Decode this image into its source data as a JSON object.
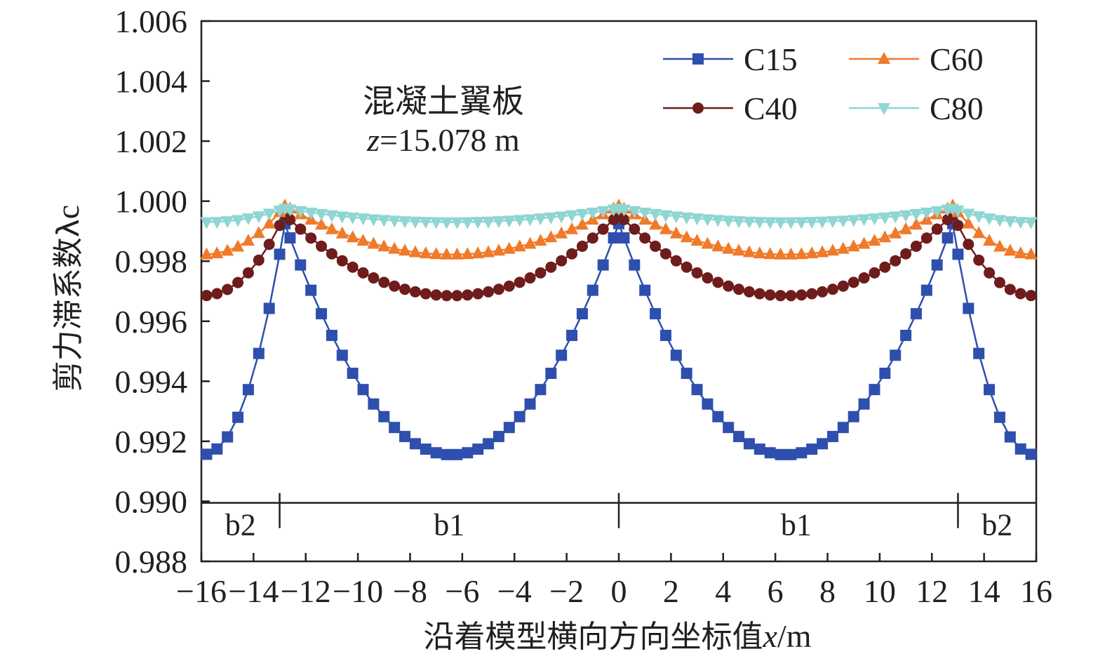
{
  "chart_data": {
    "type": "line",
    "xlabel_prefix": "沿着模型横向方向坐标值",
    "xlabel_var": "x",
    "xlabel_unit": "/m",
    "ylabel_main": "剪力滞系数λ",
    "ylabel_sub": "c",
    "xlim": [
      -16,
      16
    ],
    "ylim": [
      0.988,
      1.006
    ],
    "x_ticks": [
      -16,
      -14,
      -12,
      -10,
      -8,
      -6,
      -4,
      -2,
      0,
      2,
      4,
      6,
      8,
      10,
      12,
      14,
      16
    ],
    "x_tick_labels": [
      "−16",
      "−14",
      "−12",
      "−10",
      "−8",
      "−6",
      "−4",
      "−2",
      "0",
      "2",
      "4",
      "6",
      "8",
      "10",
      "12",
      "14",
      "16"
    ],
    "y_ticks": [
      0.988,
      0.99,
      0.992,
      0.994,
      0.996,
      0.998,
      1.0,
      1.002,
      1.004,
      1.006
    ],
    "y_tick_labels": [
      "0.988",
      "0.990",
      "0.992",
      "0.994",
      "0.996",
      "0.998",
      "1.000",
      "1.002",
      "1.004",
      "1.006"
    ],
    "annotation": {
      "line1": "混凝土翼板",
      "line2_var": "z",
      "line2_rest": "=15.078 m"
    },
    "regions": [
      {
        "label": "b2",
        "x_center": -14.5
      },
      {
        "label": "b1",
        "x_center": -6.5
      },
      {
        "label": "b1",
        "x_center": 6.8
      },
      {
        "label": "b2",
        "x_center": 14.5
      }
    ],
    "region_dividers": [
      -13,
      0,
      13
    ],
    "region_line_y": 0.98995,
    "legend_position": "top-right",
    "grid": false,
    "peaks": [
      -12.8,
      0,
      12.8
    ],
    "x_samples": {
      "start": -15.8,
      "end": 15.8,
      "step": 0.4
    },
    "series": [
      {
        "name": "C15",
        "color": "#2e4fad",
        "marker": "square",
        "peak": 0.99925,
        "trough": 0.99155
      },
      {
        "name": "C40",
        "color": "#6e1c1c",
        "marker": "circle",
        "peak": 0.99955,
        "trough": 0.99685
      },
      {
        "name": "C60",
        "color": "#f07a2a",
        "marker": "triangle-up",
        "peak": 0.99985,
        "trough": 0.99822
      },
      {
        "name": "C80",
        "color": "#8fd6d3",
        "marker": "triangle-down",
        "peak": 0.99975,
        "trough": 0.9993
      }
    ]
  }
}
